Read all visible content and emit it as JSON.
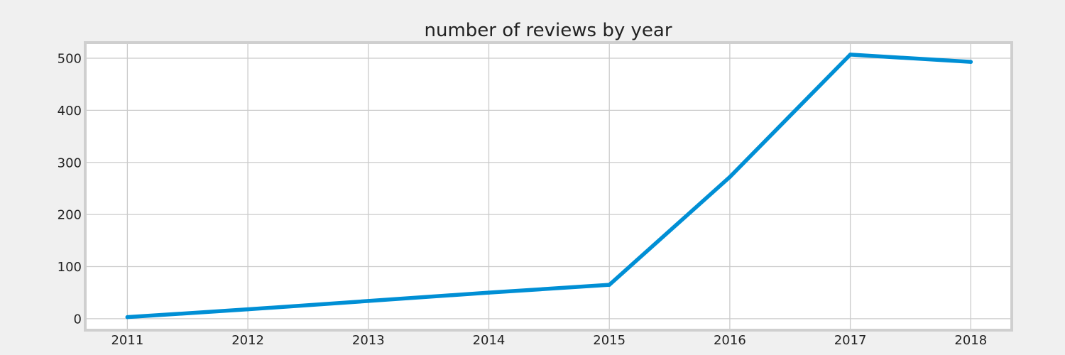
{
  "chart_data": {
    "type": "line",
    "title": "number of reviews by year",
    "xlabel": "",
    "ylabel": "",
    "x": [
      2011,
      2012,
      2013,
      2014,
      2015,
      2016,
      2017,
      2018
    ],
    "series": [
      {
        "values": [
          3,
          18,
          34,
          50,
          65,
          272,
          507,
          493
        ]
      }
    ],
    "xticks": [
      "2011",
      "2012",
      "2013",
      "2014",
      "2015",
      "2016",
      "2017",
      "2018"
    ],
    "yticks": [
      "0",
      "100",
      "200",
      "300",
      "400",
      "500"
    ],
    "xlim": [
      2010.65,
      2018.34
    ],
    "ylim": [
      -22,
      530
    ],
    "grid": true,
    "legend": "none",
    "colors": {
      "line": "#008fd5",
      "figure_background": "#f0f0f0",
      "plot_background": "#ffffff",
      "frame": "#cfcfcf",
      "grid": "#cbcbcb",
      "text": "#222222"
    }
  }
}
